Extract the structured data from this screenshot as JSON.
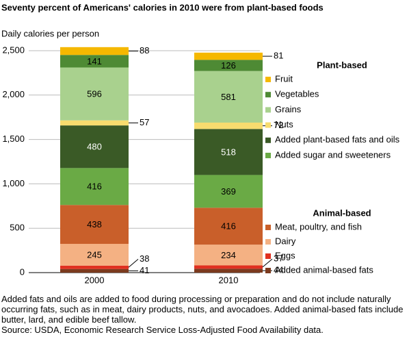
{
  "chart_data": {
    "type": "stacked-bar",
    "title": "Seventy percent of Americans' calories in 2010 were from plant-based foods",
    "y_label": "Daily calories per person",
    "categories": [
      "2000",
      "2010"
    ],
    "ylim": [
      0,
      2500
    ],
    "yticks": [
      0,
      500,
      {
        "value": 1000,
        "label": "1,000"
      },
      {
        "value": 1500,
        "label": "1,500"
      },
      {
        "value": 2000,
        "label": "2,000"
      },
      {
        "value": 2500,
        "label": "2,500"
      }
    ],
    "grid": true,
    "series_groups": [
      {
        "name": "Plant-based",
        "series": [
          {
            "name": "Fruit",
            "color": "#f5b800",
            "values": [
              88,
              81
            ]
          },
          {
            "name": "Vegetables",
            "color": "#4e8a34",
            "values": [
              141,
              126
            ]
          },
          {
            "name": "Grains",
            "color": "#a9d18e",
            "values": [
              596,
              581
            ]
          },
          {
            "name": "Nuts",
            "color": "#f7dc6f",
            "values": [
              57,
              72
            ]
          },
          {
            "name": "Added plant-based fats and oils",
            "color": "#3a5a26",
            "values": [
              480,
              518
            ]
          },
          {
            "name": "Added sugar and sweeteners",
            "color": "#6aaa45",
            "values": [
              416,
              369
            ]
          }
        ]
      },
      {
        "name": "Animal-based",
        "series": [
          {
            "name": "Meat, poultry, and fish",
            "color": "#c95f2a",
            "values": [
              438,
              416
            ]
          },
          {
            "name": "Dairy",
            "color": "#f4b183",
            "values": [
              245,
              234
            ]
          },
          {
            "name": "Eggs",
            "color": "#e03020",
            "values": [
              38,
              37
            ]
          },
          {
            "name": "Added animal-based fats",
            "color": "#7b3a1e",
            "values": [
              41,
              44
            ]
          }
        ]
      }
    ],
    "notes": [
      "Added fats and oils are added to food during processing or preparation and do not include naturally occurring fats, such as in meat, dairy products, nuts, and avocadoes. Added animal-based fats include butter, lard, and edible beef tallow.",
      "Source: USDA, Economic Research Service Loss-Adjusted Food Availability data."
    ]
  }
}
